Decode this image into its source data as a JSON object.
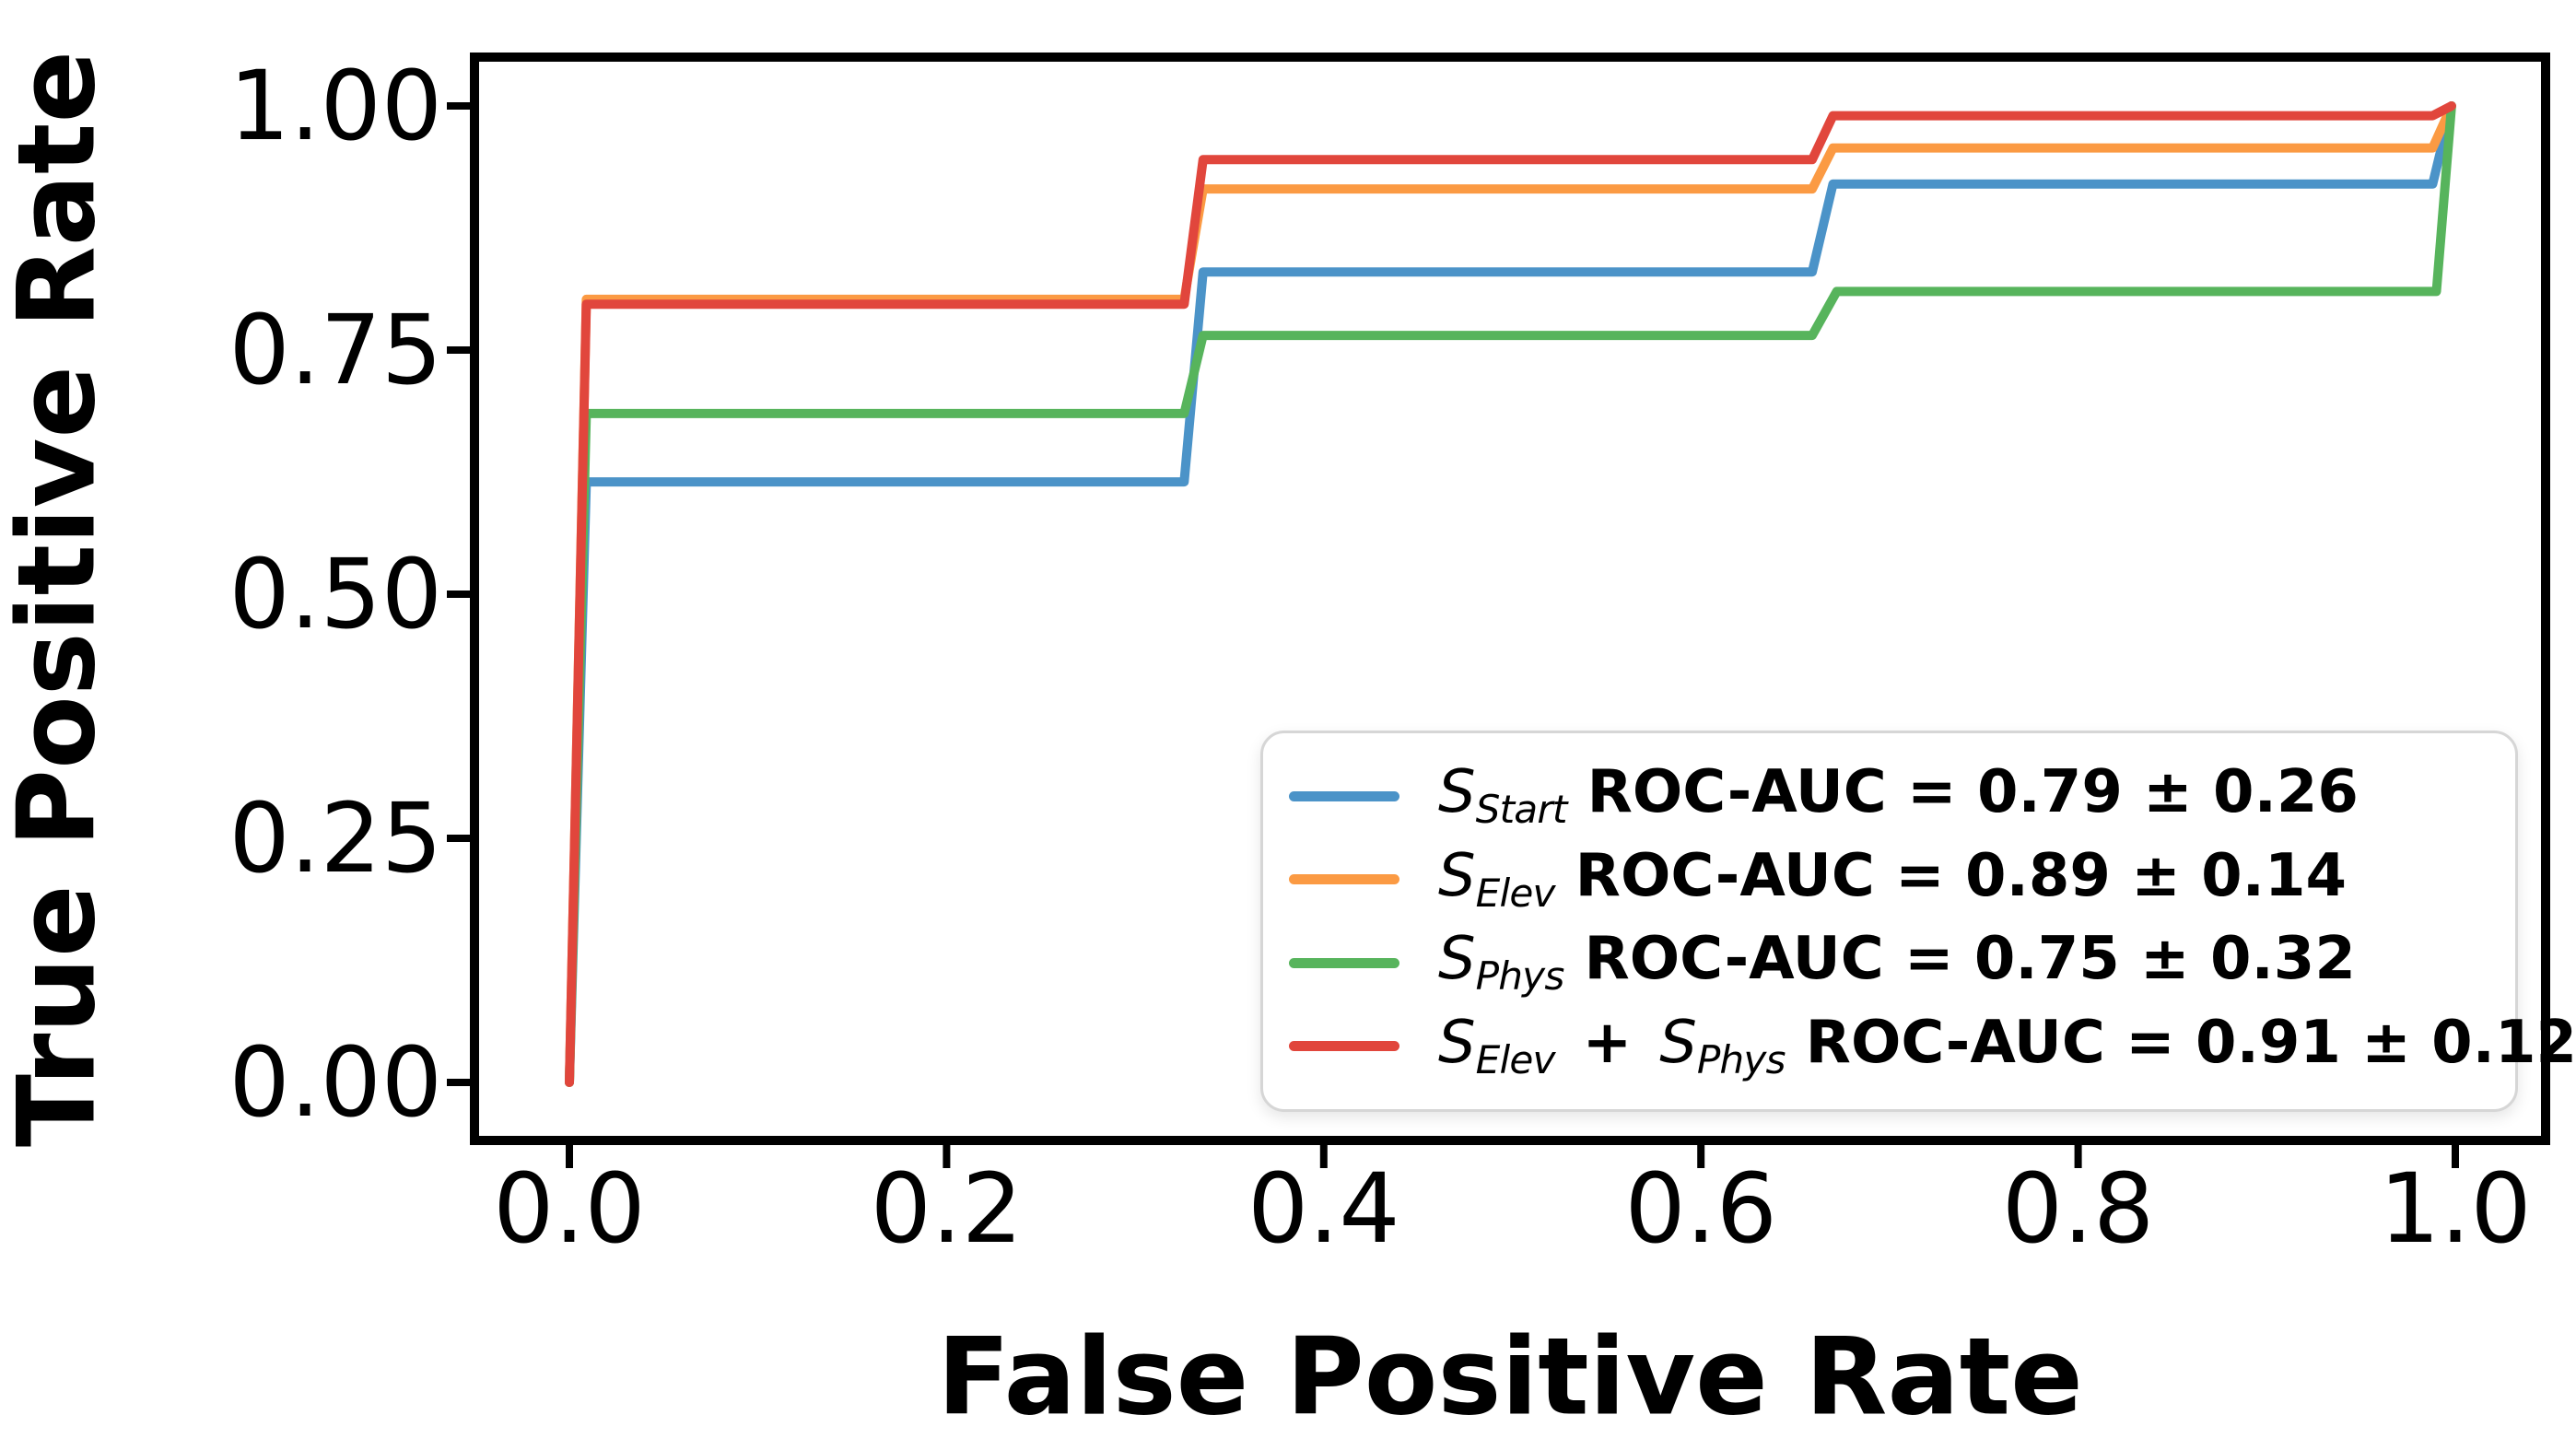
{
  "chart_data": {
    "type": "line",
    "subtype": "roc-step-curves",
    "title": "",
    "xlabel": "False Positive Rate",
    "ylabel": "True Positive Rate",
    "x_tick_labels": [
      "0.0",
      "0.2",
      "0.4",
      "0.6",
      "0.8",
      "1.0"
    ],
    "x_tick_values": [
      0.0,
      0.2,
      0.4,
      0.6,
      0.8,
      1.0
    ],
    "y_tick_labels": [
      "0.00",
      "0.25",
      "0.50",
      "0.75",
      "1.00"
    ],
    "y_tick_values": [
      0.0,
      0.25,
      0.5,
      0.75,
      1.0
    ],
    "xlim": [
      -0.05,
      1.05
    ],
    "ylim": [
      -0.056,
      1.053
    ],
    "grid": false,
    "legend_position": "lower right",
    "axis_color": "#000000",
    "series": [
      {
        "name": "S_Start",
        "color": "#4b93c8",
        "auc": 0.79,
        "auc_err": 0.26,
        "legend_math": [
          {
            "base": "S",
            "sub": "Start"
          }
        ],
        "legend_auc_text": "ROC-AUC = 0.79 ± 0.26",
        "points": [
          [
            0,
            0
          ],
          [
            0.009,
            0.615
          ],
          [
            0.326,
            0.615
          ],
          [
            0.336,
            0.83
          ],
          [
            0.659,
            0.83
          ],
          [
            0.67,
            0.92
          ],
          [
            0.988,
            0.92
          ],
          [
            0.998,
            1.0
          ]
        ]
      },
      {
        "name": "S_Elev",
        "color": "#fb9a43",
        "auc": 0.89,
        "auc_err": 0.14,
        "legend_math": [
          {
            "base": "S",
            "sub": "Elev"
          }
        ],
        "legend_auc_text": "ROC-AUC = 0.89 ± 0.14",
        "points": [
          [
            0,
            0
          ],
          [
            0.009,
            0.802
          ],
          [
            0.326,
            0.802
          ],
          [
            0.336,
            0.915
          ],
          [
            0.659,
            0.915
          ],
          [
            0.67,
            0.957
          ],
          [
            0.988,
            0.957
          ],
          [
            0.998,
            1.0
          ]
        ]
      },
      {
        "name": "S_Phys",
        "color": "#57b45c",
        "auc": 0.75,
        "auc_err": 0.32,
        "legend_math": [
          {
            "base": "S",
            "sub": "Phys"
          }
        ],
        "legend_auc_text": "ROC-AUC = 0.75 ± 0.32",
        "points": [
          [
            0,
            0
          ],
          [
            0.009,
            0.685
          ],
          [
            0.326,
            0.685
          ],
          [
            0.336,
            0.765
          ],
          [
            0.659,
            0.765
          ],
          [
            0.672,
            0.81
          ],
          [
            0.99,
            0.81
          ],
          [
            0.998,
            1.0
          ]
        ]
      },
      {
        "name": "S_Elev + S_Phys",
        "color": "#e1463c",
        "auc": 0.91,
        "auc_err": 0.12,
        "legend_math": [
          {
            "base": "S",
            "sub": "Elev"
          },
          {
            "plus": "+"
          },
          {
            "base": "S",
            "sub": "Phys"
          }
        ],
        "legend_auc_text": "ROC-AUC = 0.91 ± 0.12",
        "points": [
          [
            0,
            0
          ],
          [
            0.009,
            0.797
          ],
          [
            0.326,
            0.797
          ],
          [
            0.336,
            0.945
          ],
          [
            0.659,
            0.945
          ],
          [
            0.67,
            0.99
          ],
          [
            0.988,
            0.99
          ],
          [
            0.998,
            1.0
          ]
        ]
      }
    ]
  }
}
